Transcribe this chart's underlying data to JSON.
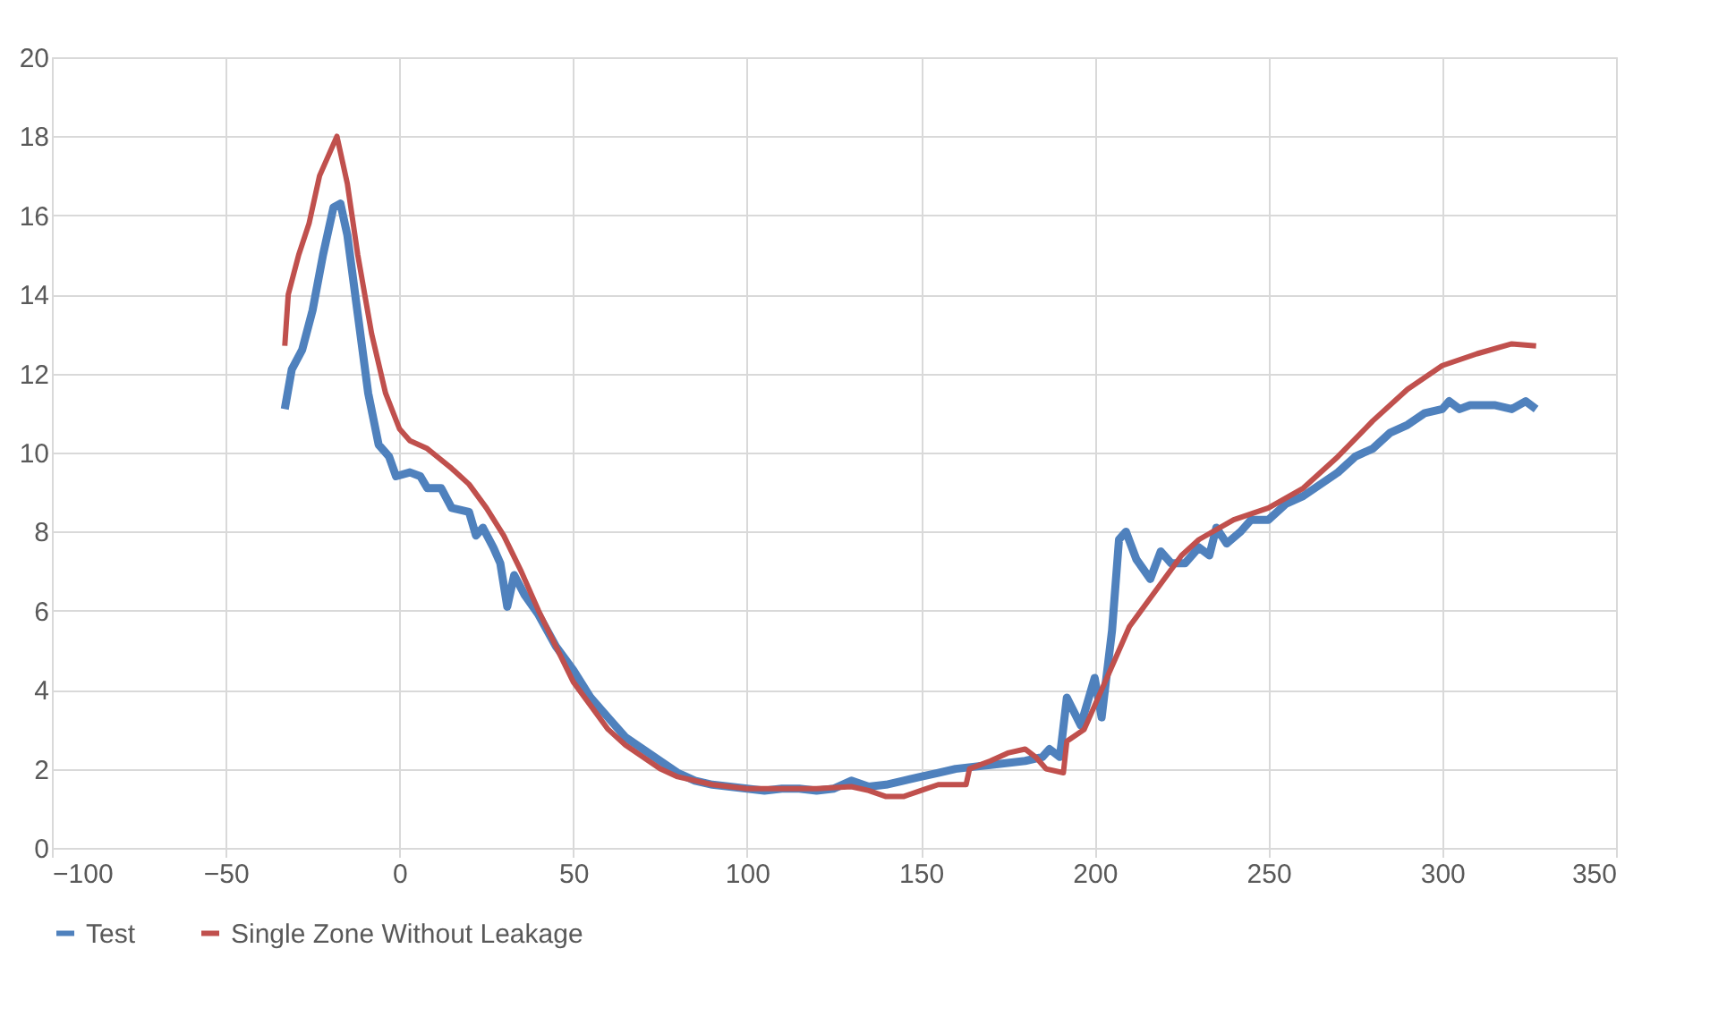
{
  "chart_data": {
    "type": "line",
    "xlim": [
      -100,
      350
    ],
    "xticks": [
      -100,
      -50,
      0,
      50,
      100,
      150,
      200,
      250,
      300,
      350
    ],
    "ylim": [
      0,
      20
    ],
    "yticks": [
      0,
      2,
      4,
      6,
      8,
      10,
      12,
      14,
      16,
      18,
      20
    ],
    "grid": true,
    "legend": "bottom",
    "marker": "none",
    "line_style": "solid",
    "series": [
      {
        "name": "Test",
        "color": "#4f81bd",
        "x": [
          -33,
          -31,
          -28,
          -25,
          -22,
          -19,
          -17,
          -15,
          -12,
          -9,
          -6,
          -3,
          -1,
          3,
          6,
          8,
          12,
          15,
          20,
          22,
          24,
          27,
          29,
          31,
          33,
          36,
          40,
          45,
          50,
          55,
          60,
          65,
          70,
          75,
          80,
          85,
          90,
          95,
          100,
          105,
          110,
          115,
          120,
          125,
          130,
          135,
          140,
          145,
          150,
          155,
          160,
          165,
          170,
          180,
          185,
          187,
          190,
          192,
          196,
          200,
          202,
          205,
          207,
          209,
          212,
          216,
          219,
          222,
          226,
          230,
          233,
          235,
          238,
          242,
          245,
          250,
          255,
          260,
          265,
          270,
          275,
          280,
          285,
          290,
          295,
          300,
          302,
          305,
          308,
          315,
          320,
          324,
          327
        ],
        "values": [
          11.1,
          12.1,
          12.6,
          13.6,
          15.0,
          16.2,
          16.3,
          15.5,
          13.5,
          11.5,
          10.2,
          9.9,
          9.4,
          9.5,
          9.4,
          9.1,
          9.1,
          8.6,
          8.5,
          7.9,
          8.1,
          7.6,
          7.2,
          6.1,
          6.9,
          6.4,
          5.9,
          5.1,
          4.5,
          3.8,
          3.3,
          2.8,
          2.5,
          2.2,
          1.9,
          1.7,
          1.6,
          1.55,
          1.5,
          1.45,
          1.5,
          1.5,
          1.45,
          1.5,
          1.7,
          1.55,
          1.6,
          1.7,
          1.8,
          1.9,
          2.0,
          2.05,
          2.1,
          2.2,
          2.3,
          2.5,
          2.3,
          3.8,
          3.1,
          4.3,
          3.3,
          5.5,
          7.8,
          8.0,
          7.3,
          6.8,
          7.5,
          7.2,
          7.2,
          7.6,
          7.4,
          8.1,
          7.7,
          8.0,
          8.3,
          8.3,
          8.7,
          8.9,
          9.2,
          9.5,
          9.9,
          10.1,
          10.5,
          10.7,
          11.0,
          11.1,
          11.3,
          11.1,
          11.2,
          11.2,
          11.1,
          11.3,
          11.1
        ]
      },
      {
        "name": "Single Zone Without Leakage",
        "color": "#c0504d",
        "x": [
          -33,
          -32,
          -29,
          -26,
          -23,
          -18,
          -15,
          -12,
          -8,
          -4,
          0,
          3,
          8,
          15,
          20,
          25,
          30,
          35,
          40,
          45,
          50,
          55,
          60,
          65,
          70,
          75,
          80,
          90,
          100,
          110,
          120,
          130,
          135,
          140,
          145,
          150,
          155,
          163,
          164,
          170,
          175,
          180,
          183,
          186,
          191,
          192,
          197,
          200,
          205,
          210,
          215,
          220,
          225,
          230,
          240,
          250,
          260,
          270,
          280,
          290,
          300,
          310,
          320,
          327
        ],
        "values": [
          12.7,
          14.0,
          15.0,
          15.8,
          17.0,
          18.0,
          16.8,
          15.0,
          13.0,
          11.5,
          10.6,
          10.3,
          10.1,
          9.6,
          9.2,
          8.6,
          7.9,
          7.0,
          6.0,
          5.1,
          4.2,
          3.6,
          3.0,
          2.6,
          2.3,
          2.0,
          1.8,
          1.6,
          1.5,
          1.5,
          1.5,
          1.55,
          1.45,
          1.3,
          1.3,
          1.45,
          1.6,
          1.6,
          2.0,
          2.2,
          2.4,
          2.5,
          2.3,
          2.0,
          1.9,
          2.7,
          3.0,
          3.6,
          4.6,
          5.6,
          6.2,
          6.8,
          7.4,
          7.8,
          8.3,
          8.6,
          9.1,
          9.9,
          10.8,
          11.6,
          12.2,
          12.5,
          12.75,
          12.7
        ]
      }
    ]
  }
}
